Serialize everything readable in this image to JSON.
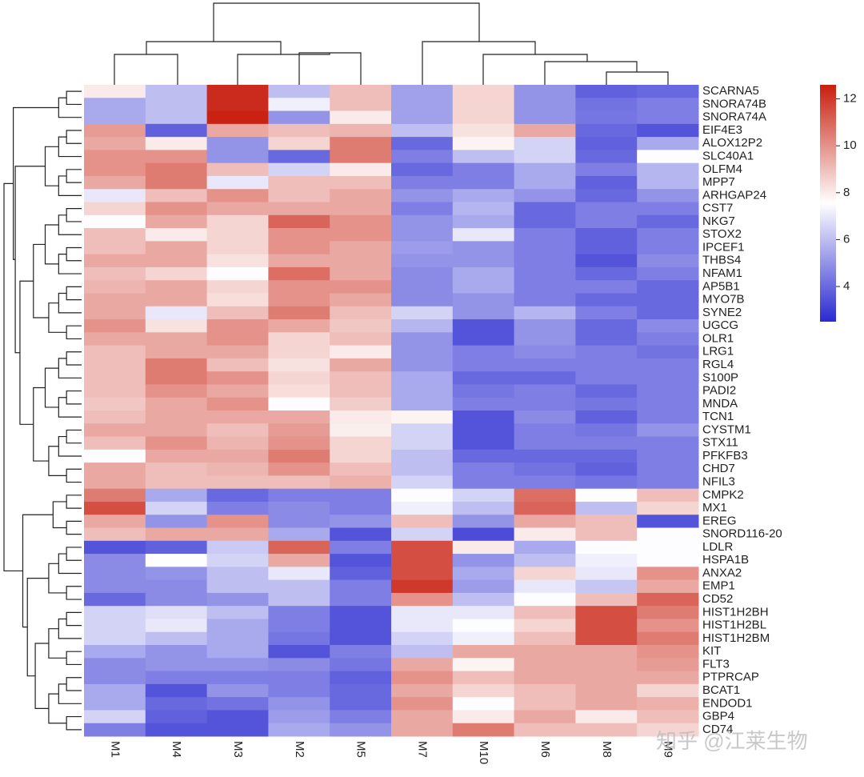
{
  "chart_data": {
    "type": "heatmap",
    "rows": [
      "SCARNA5",
      "SNORA74B",
      "SNORA74A",
      "EIF4E3",
      "ALOX12P2",
      "SLC40A1",
      "OLFM4",
      "MPP7",
      "ARHGAP24",
      "CST7",
      "NKG7",
      "STOX2",
      "IPCEF1",
      "THBS4",
      "NFAM1",
      "AP5B1",
      "MYO7B",
      "SYNE2",
      "UGCG",
      "OLR1",
      "LRG1",
      "RGL4",
      "S100P",
      "PADI2",
      "MNDA",
      "TCN1",
      "CYSTM1",
      "STX11",
      "PFKFB3",
      "CHD7",
      "NFIL3",
      "CMPK2",
      "MX1",
      "EREG",
      "SNORD116-20",
      "LDLR",
      "HSPA1B",
      "ANXA2",
      "EMP1",
      "CD52",
      "HIST1H2BH",
      "HIST1H2BL",
      "HIST1H2BM",
      "KIT",
      "FLT3",
      "PTPRCAP",
      "BCAT1",
      "ENDOD1",
      "GBP4",
      "CD74"
    ],
    "columns": [
      "M1",
      "M4",
      "M3",
      "M2",
      "M5",
      "M7",
      "M10",
      "M6",
      "M8",
      "M9"
    ],
    "values": [
      [
        8,
        6,
        12.3,
        6,
        9,
        5.3,
        8.5,
        5,
        3.8,
        4
      ],
      [
        5.5,
        6,
        12.3,
        7.2,
        9,
        5.3,
        8.5,
        5,
        4.2,
        4.5
      ],
      [
        5.5,
        6,
        12.5,
        5,
        8,
        5.3,
        8.5,
        5,
        4.3,
        4.5
      ],
      [
        9.8,
        3.8,
        9.5,
        9,
        9.2,
        6,
        8.2,
        9.5,
        4,
        3.5
      ],
      [
        9.5,
        8,
        5,
        8.5,
        10.5,
        4,
        7.8,
        6.5,
        3.8,
        5.5
      ],
      [
        10,
        10,
        5,
        4,
        10.5,
        4.5,
        6,
        6.5,
        4,
        7.5
      ],
      [
        10,
        10.5,
        9,
        6.5,
        8,
        4,
        4.5,
        5.5,
        4.5,
        5.8
      ],
      [
        9.5,
        10.5,
        7,
        9,
        9,
        4.5,
        4.5,
        5.5,
        3.8,
        5.8
      ],
      [
        7,
        9,
        10,
        9,
        9.5,
        5,
        5.5,
        5,
        4,
        5
      ],
      [
        8.5,
        10,
        9.5,
        9.5,
        9.5,
        4.5,
        5.8,
        4,
        4.5,
        4.5
      ],
      [
        7.5,
        9.5,
        8.5,
        11,
        10,
        5,
        5.5,
        4,
        4.5,
        4
      ],
      [
        9,
        8,
        8.5,
        10,
        10,
        5,
        7,
        4.5,
        3.8,
        4.5
      ],
      [
        9,
        9.5,
        8.5,
        10,
        9.5,
        5.2,
        5,
        4.5,
        3.8,
        4.5
      ],
      [
        9.5,
        9.5,
        8.2,
        9.5,
        9.5,
        5,
        5,
        4.5,
        3.5,
        4.8
      ],
      [
        9,
        8.5,
        7.5,
        10.8,
        9.5,
        4.8,
        5.5,
        4.5,
        4,
        4.5
      ],
      [
        9.2,
        9.5,
        8.5,
        10,
        10,
        4.8,
        5.5,
        4.5,
        4.5,
        4
      ],
      [
        9.5,
        9.5,
        8.3,
        10,
        9.5,
        4.8,
        5,
        4.5,
        4,
        4
      ],
      [
        9.5,
        7,
        9,
        10.5,
        9,
        6.5,
        5,
        5.8,
        4.5,
        4
      ],
      [
        10,
        8.2,
        10,
        9.5,
        8.8,
        5.8,
        3.5,
        5,
        4,
        4.8
      ],
      [
        9.5,
        9.5,
        10,
        8.5,
        9,
        5,
        3.5,
        5,
        4,
        4.5
      ],
      [
        9,
        9.5,
        9.5,
        8.5,
        8,
        5,
        4.5,
        4.8,
        4.5,
        4.2
      ],
      [
        9,
        10.5,
        9,
        8.2,
        9.5,
        5,
        4.5,
        4.5,
        4.5,
        4.5
      ],
      [
        9,
        10.5,
        10,
        8.5,
        9,
        5.5,
        4,
        4,
        4.5,
        4.5
      ],
      [
        9,
        10,
        9.5,
        8.3,
        9,
        5.5,
        4.3,
        4.5,
        4,
        4.5
      ],
      [
        8.8,
        9.5,
        10,
        7.5,
        8.7,
        5.5,
        4.5,
        4.5,
        4.3,
        4.5
      ],
      [
        9,
        9.5,
        9.5,
        9.5,
        8,
        7.8,
        3.5,
        4.8,
        3.8,
        4.5
      ],
      [
        9.5,
        9.5,
        9,
        9.8,
        7.9,
        6.5,
        3.5,
        4.5,
        4.3,
        5
      ],
      [
        9,
        10,
        9.2,
        10,
        8.5,
        6.5,
        3.5,
        4.5,
        4.5,
        4.5
      ],
      [
        7.5,
        9.5,
        9.5,
        10.5,
        8.5,
        6,
        4,
        4,
        4,
        4.5
      ],
      [
        9.5,
        9,
        9.2,
        10,
        9,
        6,
        4.5,
        4.2,
        3.8,
        4.5
      ],
      [
        9.5,
        9,
        9,
        9,
        9.3,
        6.5,
        4.5,
        4.5,
        4.3,
        4.5
      ],
      [
        10.5,
        5.5,
        4,
        4.5,
        4.5,
        7.5,
        6.5,
        10.8,
        7.5,
        9
      ],
      [
        11.5,
        6.5,
        4.5,
        4.8,
        4.5,
        7.2,
        6,
        11,
        6,
        8.5
      ],
      [
        9.5,
        5,
        10,
        4.8,
        5,
        9,
        5,
        9.5,
        9,
        3.5
      ],
      [
        9,
        9.5,
        9.5,
        5.5,
        3.5,
        6.5,
        3.3,
        8,
        9,
        7.5
      ],
      [
        3.5,
        3.8,
        6.3,
        11,
        4.5,
        11.5,
        8,
        5.5,
        7.5,
        7.5
      ],
      [
        4.8,
        7.5,
        6.5,
        9.5,
        3.5,
        11.5,
        5,
        6,
        7.2,
        7.5
      ],
      [
        4.8,
        5,
        6,
        7,
        3.8,
        11.5,
        5.5,
        8.5,
        7,
        10
      ],
      [
        4.8,
        4.8,
        6,
        6,
        4.5,
        12,
        5.2,
        7,
        6.2,
        9.5
      ],
      [
        4,
        4.8,
        5,
        6,
        4.5,
        10,
        6,
        7.5,
        9,
        11
      ],
      [
        6.5,
        6.8,
        6,
        4.5,
        3.5,
        7,
        7,
        9,
        11.5,
        10.5
      ],
      [
        6.5,
        7,
        5.5,
        4.5,
        3.5,
        7,
        7.5,
        8.5,
        11.5,
        10
      ],
      [
        6.5,
        6,
        5.5,
        4.3,
        3.5,
        6.5,
        7.2,
        9,
        11.5,
        10.5
      ],
      [
        5.5,
        5,
        5.5,
        3.5,
        4.5,
        6,
        9.5,
        9.5,
        9.5,
        10
      ],
      [
        4.8,
        5,
        5,
        4.8,
        4.3,
        9.5,
        7.8,
        9.5,
        9.5,
        9.8
      ],
      [
        4.8,
        4.5,
        4.5,
        4.5,
        3.8,
        10,
        9,
        9.5,
        9.5,
        9.5
      ],
      [
        5.5,
        3.5,
        5,
        4.5,
        4,
        9.5,
        8.5,
        9,
        9.5,
        8.5
      ],
      [
        5.5,
        4,
        4.2,
        5,
        4,
        10,
        7.5,
        9,
        9.5,
        9.3
      ],
      [
        6.5,
        3.8,
        3.5,
        5.2,
        4.5,
        9.5,
        8,
        9.5,
        8,
        9
      ],
      [
        4.5,
        3.5,
        3.5,
        5.5,
        5,
        9.5,
        10.5,
        9,
        9,
        8.5
      ]
    ],
    "clim": [
      2.5,
      12.6
    ],
    "colorbar_ticks": [
      4,
      6,
      8,
      10,
      12
    ],
    "colors": [
      "#2a2ad2",
      "#ffffff",
      "#c81e0e"
    ],
    "watermark": "知乎 @江莱生物"
  }
}
